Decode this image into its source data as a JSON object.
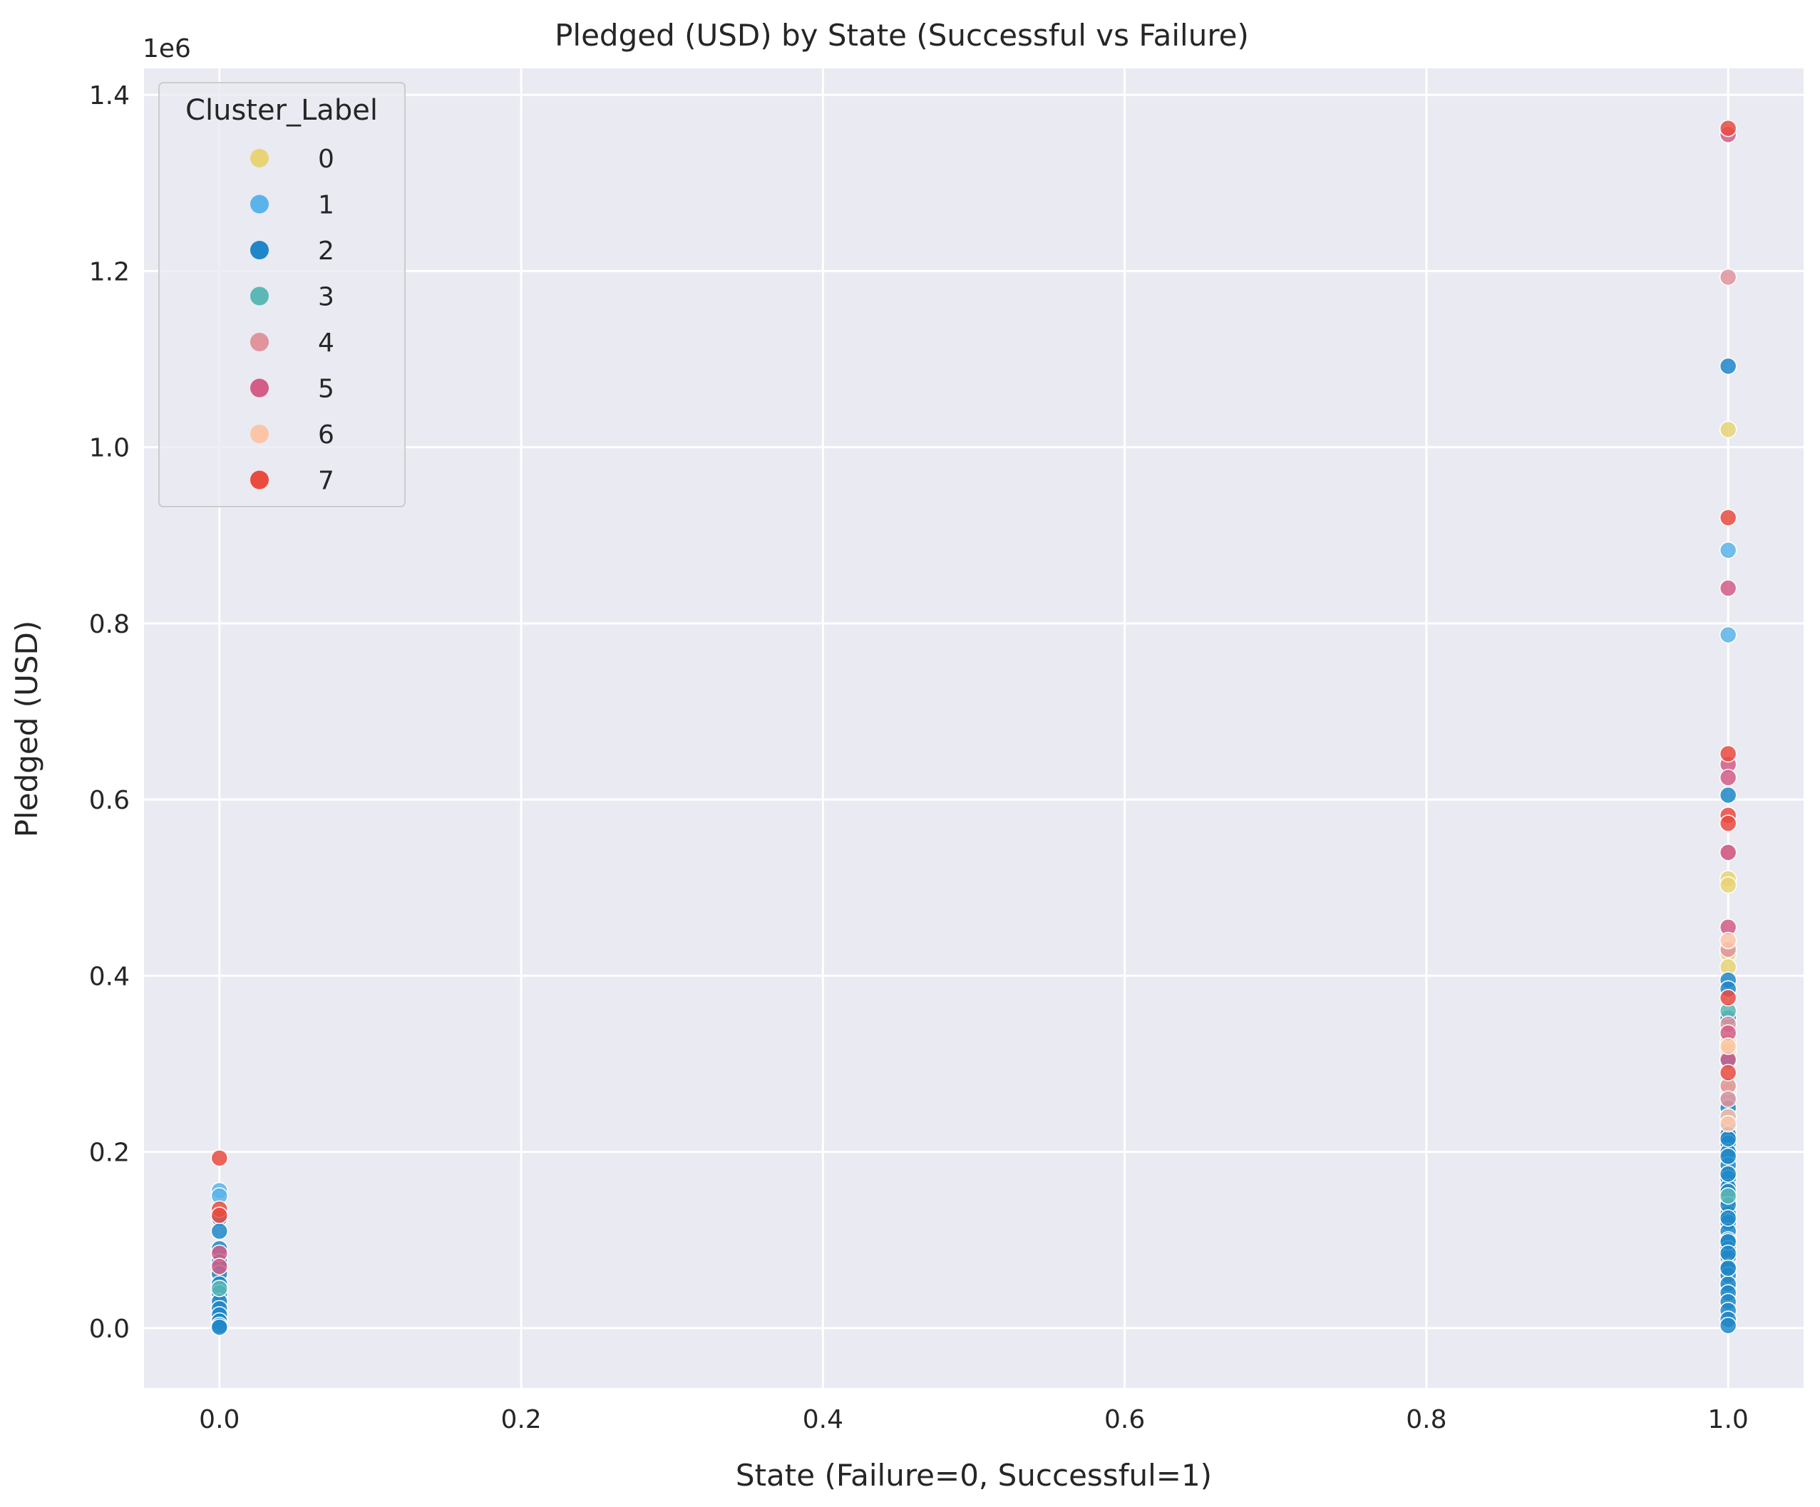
{
  "chart_data": {
    "type": "scatter",
    "title": "Pledged (USD) by State (Successful vs Failure)",
    "xlabel": "State (Failure=0, Successful=1)",
    "ylabel": "Pledged (USD)",
    "y_offset_label": "1e6",
    "xlim": [
      -0.05,
      1.05
    ],
    "ylim": [
      -0.068,
      1.43
    ],
    "x_ticks": [
      "0.0",
      "0.2",
      "0.4",
      "0.6",
      "0.8",
      "1.0"
    ],
    "y_ticks": [
      "0.0",
      "0.2",
      "0.4",
      "0.6",
      "0.8",
      "1.0",
      "1.2",
      "1.4"
    ],
    "grid": true,
    "legend_title": "Cluster_Label",
    "legend_position": "upper-left",
    "colors": {
      "background": "#eaeaf2",
      "grid": "#ffffff",
      "marker_edge": "#ffffff"
    },
    "series": [
      {
        "name": "0",
        "color": "#e8d474",
        "x": [
          1,
          1,
          1,
          1,
          1,
          1,
          1,
          1,
          0
        ],
        "y": [
          1.02,
          0.51,
          0.503,
          0.425,
          0.41,
          0.325,
          0.315,
          0.27,
          0.06
        ]
      },
      {
        "name": "1",
        "color": "#5ab4ea",
        "x": [
          1,
          1,
          1,
          1,
          1,
          1,
          1,
          0,
          0,
          0,
          0,
          0
        ],
        "y": [
          0.883,
          0.787,
          0.262,
          0.228,
          0.152,
          0.102,
          0.045,
          0.156,
          0.15,
          0.05,
          0.035,
          0.012
        ]
      },
      {
        "name": "2",
        "color": "#1f87c8",
        "x": [
          1,
          1,
          1,
          1,
          1,
          1,
          1,
          1,
          1,
          1,
          1,
          1,
          1,
          1,
          1,
          1,
          1,
          1,
          1,
          1,
          1,
          1,
          1,
          1,
          1,
          1,
          1,
          1,
          1,
          1,
          1,
          1,
          1,
          1,
          1,
          1,
          1,
          1,
          0,
          0,
          0,
          0,
          0,
          0,
          0,
          0,
          0,
          0,
          0,
          0,
          0
        ],
        "y": [
          1.092,
          0.605,
          0.395,
          0.385,
          0.352,
          0.303,
          0.22,
          0.21,
          0.2,
          0.185,
          0.17,
          0.16,
          0.145,
          0.13,
          0.12,
          0.11,
          0.1,
          0.09,
          0.08,
          0.07,
          0.06,
          0.05,
          0.04,
          0.03,
          0.02,
          0.01,
          0.003,
          0.25,
          0.24,
          0.215,
          0.195,
          0.175,
          0.155,
          0.14,
          0.125,
          0.098,
          0.085,
          0.068,
          0.125,
          0.11,
          0.09,
          0.075,
          0.062,
          0.05,
          0.04,
          0.03,
          0.022,
          0.015,
          0.008,
          0.003,
          0.001
        ]
      },
      {
        "name": "3",
        "color": "#5ab9b5",
        "x": [
          1,
          1,
          0
        ],
        "y": [
          0.36,
          0.15,
          0.045
        ]
      },
      {
        "name": "4",
        "color": "#e0949c",
        "x": [
          1,
          1,
          1,
          1,
          1,
          1
        ],
        "y": [
          1.193,
          0.54,
          0.43,
          0.345,
          0.275,
          0.26
        ]
      },
      {
        "name": "5",
        "color": "#d45d87",
        "x": [
          1,
          1,
          1,
          1,
          1,
          1,
          1,
          1,
          0,
          0
        ],
        "y": [
          1.355,
          0.84,
          0.64,
          0.625,
          0.54,
          0.455,
          0.335,
          0.305,
          0.085,
          0.07
        ]
      },
      {
        "name": "6",
        "color": "#fcc5a8",
        "x": [
          1,
          1,
          1,
          1
        ],
        "y": [
          0.44,
          0.32,
          0.24,
          0.232
        ]
      },
      {
        "name": "7",
        "color": "#ea4b3f",
        "x": [
          1,
          1,
          1,
          1,
          1,
          1,
          1,
          0,
          0,
          0
        ],
        "y": [
          1.362,
          0.92,
          0.652,
          0.582,
          0.573,
          0.375,
          0.29,
          0.193,
          0.135,
          0.128
        ]
      }
    ]
  }
}
